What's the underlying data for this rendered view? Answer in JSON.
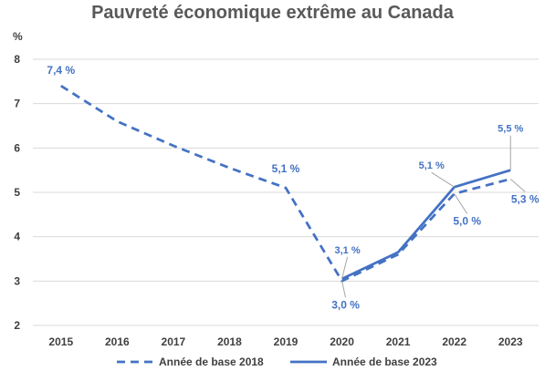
{
  "chart_data": {
    "type": "line",
    "title": "Pauvreté économique extrême au Canada",
    "ylabel": "%",
    "xlabel": "",
    "ylim": [
      2,
      8
    ],
    "yticks": [
      2,
      3,
      4,
      5,
      6,
      7,
      8
    ],
    "categories": [
      "2015",
      "2016",
      "2017",
      "2018",
      "2019",
      "2020",
      "2021",
      "2022",
      "2023"
    ],
    "grid": "horizontal",
    "legend_position": "bottom",
    "colors": {
      "line": "#4472C4",
      "grid": "#D9D9D9",
      "leader": "#A6A6A6"
    },
    "series": [
      {
        "name": "Année de base 2018",
        "style": "dashed",
        "values": [
          7.4,
          6.6,
          6.05,
          5.55,
          5.1,
          3.0,
          3.6,
          4.97,
          5.3
        ]
      },
      {
        "name": "Année de base 2023",
        "style": "solid",
        "values": [
          null,
          null,
          null,
          null,
          null,
          3.05,
          3.65,
          5.12,
          5.5
        ]
      }
    ],
    "annotations": [
      {
        "series": 0,
        "index": 0,
        "text": "7,4 %"
      },
      {
        "series": 0,
        "index": 4,
        "text": "5,1 %"
      },
      {
        "series": 0,
        "index": 5,
        "text": "3,0 %"
      },
      {
        "series": 0,
        "index": 7,
        "text": "5,0 %"
      },
      {
        "series": 0,
        "index": 8,
        "text": "5,3 %"
      },
      {
        "series": 1,
        "index": 5,
        "text": "3,1 %"
      },
      {
        "series": 1,
        "index": 7,
        "text": "5,1 %"
      },
      {
        "series": 1,
        "index": 8,
        "text": "5,5 %"
      }
    ]
  }
}
